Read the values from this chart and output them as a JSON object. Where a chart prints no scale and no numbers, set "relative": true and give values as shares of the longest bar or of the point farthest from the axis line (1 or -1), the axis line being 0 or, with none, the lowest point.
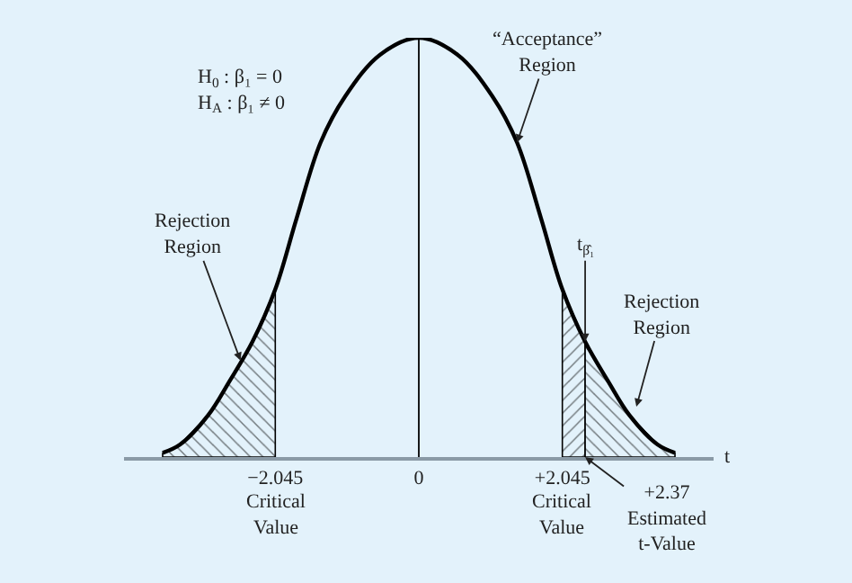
{
  "chart_data": {
    "type": "line",
    "relative": true,
    "xlabel": "t",
    "xlim": [
      -4.2,
      4.2
    ],
    "xticks": [
      {
        "value": -2.045,
        "label": "−2.045"
      },
      0,
      {
        "value": 2.045,
        "label": "+2.045"
      }
    ],
    "series": [
      {
        "color": "#000000",
        "x": [
          -3.65,
          -3.4,
          -3.0,
          -2.7,
          -2.37,
          -2.045,
          -1.74,
          -1.4,
          -1.05,
          -0.55,
          0,
          0.55,
          1.05,
          1.4,
          1.74,
          2.045,
          2.37,
          2.7,
          3.0,
          3.4,
          3.65
        ],
        "values": [
          0.01,
          0.03,
          0.1,
          0.18,
          0.275,
          0.4,
          0.57,
          0.75,
          0.86,
          0.96,
          1,
          0.96,
          0.86,
          0.75,
          0.57,
          0.4,
          0.275,
          0.18,
          0.1,
          0.03,
          0.01
        ]
      },
      {
        "type": "area",
        "color": "#000000",
        "x": [
          -3.65,
          -3.4,
          -3.0,
          -2.7,
          -2.37,
          -2.045
        ],
        "values": [
          0.01,
          0.03,
          0.1,
          0.18,
          0.275,
          0.4
        ]
      },
      {
        "type": "area",
        "color": "#000000",
        "x": [
          2.045,
          2.37
        ],
        "values": [
          0.4,
          0.275
        ]
      },
      {
        "type": "area",
        "color": "#000000",
        "x": [
          2.37,
          2.7,
          3.0,
          3.4,
          3.65
        ],
        "values": [
          0.275,
          0.18,
          0.1,
          0.03,
          0.01
        ]
      }
    ],
    "ref_lines": [
      {
        "axis": "x",
        "value": 0,
        "color": "#000000"
      }
    ],
    "annotations": [
      "H$_{0}$ : β₁ = 0\nH$_{A}$ : β₁ ≠ 0",
      {
        "text": "“Acceptance”\nRegion",
        "x": 1.4,
        "y": 0.75
      },
      {
        "text": "Rejection\nRegion",
        "x": -2.54,
        "y": 0.23
      },
      {
        "text": "t$_{β̂₁}$",
        "x": 2.37,
        "y": 0.275
      },
      {
        "text": "Rejection\nRegion",
        "x": 3.1,
        "y": 0.12
      },
      {
        "text": "Critical\nValue",
        "x": -2.045,
        "y": 0
      },
      {
        "text": "Critical\nValue",
        "x": 2.045,
        "y": 0
      },
      {
        "text": "+2.37\nEstimated\nt-Value",
        "x": 2.37,
        "y": 0
      }
    ]
  }
}
